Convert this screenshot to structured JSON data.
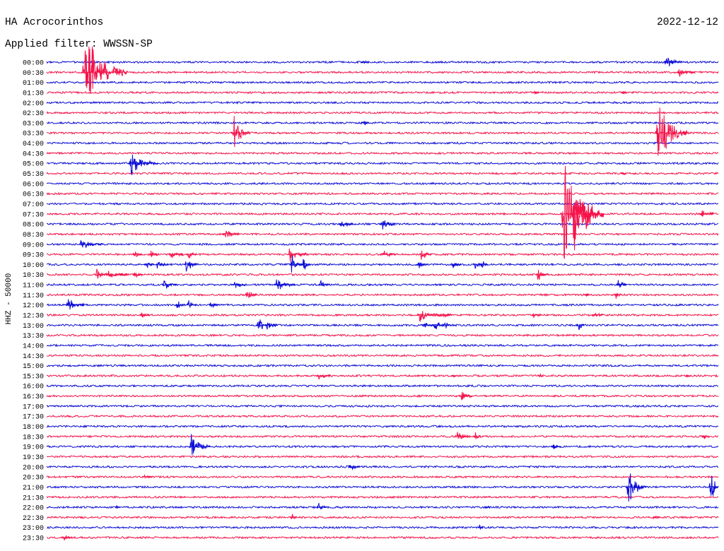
{
  "chart_data": {
    "type": "line",
    "title": "HA Acrocorinthos",
    "date": "2022-12-12",
    "filter": "Applied filter: WWSSN-SP",
    "ylabel": "HHZ - 50000",
    "colors": {
      "blue": "#0b0bd6",
      "red": "#f5124a",
      "text": "#000000",
      "background": "#ffffff"
    },
    "rows": [
      {
        "label": "00:00",
        "color": "blue",
        "events": [
          {
            "t": 14.1,
            "amp": 0.2,
            "dur": 0.3
          },
          {
            "t": 27.6,
            "amp": 0.7,
            "dur": 0.8
          }
        ]
      },
      {
        "label": "00:30",
        "color": "red",
        "events": [
          {
            "t": 1.6,
            "amp": 4.3,
            "dur": 2.0
          },
          {
            "t": 2.0,
            "amp": 3.8,
            "dur": 0.5
          },
          {
            "t": 28.2,
            "amp": 0.4,
            "dur": 0.8
          }
        ]
      },
      {
        "label": "01:00",
        "color": "blue",
        "events": []
      },
      {
        "label": "01:30",
        "color": "red",
        "events": [
          {
            "t": 21.8,
            "amp": 0.2,
            "dur": 0.2
          },
          {
            "t": 25.7,
            "amp": 0.2,
            "dur": 0.2
          }
        ]
      },
      {
        "label": "02:00",
        "color": "blue",
        "events": []
      },
      {
        "label": "02:30",
        "color": "red",
        "events": []
      },
      {
        "label": "03:00",
        "color": "blue",
        "events": [
          {
            "t": 14.1,
            "amp": 0.4,
            "dur": 0.3
          }
        ]
      },
      {
        "label": "03:30",
        "color": "red",
        "events": [
          {
            "t": 8.3,
            "amp": 2.0,
            "dur": 0.8
          },
          {
            "t": 27.2,
            "amp": 3.3,
            "dur": 1.5
          }
        ]
      },
      {
        "label": "04:00",
        "color": "blue",
        "events": []
      },
      {
        "label": "04:30",
        "color": "red",
        "events": []
      },
      {
        "label": "05:00",
        "color": "blue",
        "events": [
          {
            "t": 3.7,
            "amp": 1.3,
            "dur": 1.3
          }
        ]
      },
      {
        "label": "05:30",
        "color": "red",
        "events": [
          {
            "t": 25.7,
            "amp": 0.2,
            "dur": 0.2
          }
        ]
      },
      {
        "label": "06:00",
        "color": "blue",
        "events": []
      },
      {
        "label": "06:30",
        "color": "red",
        "events": []
      },
      {
        "label": "07:00",
        "color": "blue",
        "events": []
      },
      {
        "label": "07:30",
        "color": "red",
        "events": [
          {
            "t": 23.0,
            "amp": 5.5,
            "dur": 1.9
          },
          {
            "t": 23.5,
            "amp": 4.2,
            "dur": 1.0
          },
          {
            "t": 24.0,
            "amp": 3.2,
            "dur": 0.8
          },
          {
            "t": 29.2,
            "amp": 0.6,
            "dur": 0.6
          }
        ]
      },
      {
        "label": "08:00",
        "color": "blue",
        "events": [
          {
            "t": 13.1,
            "amp": 0.5,
            "dur": 0.6
          },
          {
            "t": 14.9,
            "amp": 0.95,
            "dur": 0.7
          }
        ]
      },
      {
        "label": "08:30",
        "color": "red",
        "events": [
          {
            "t": 7.9,
            "amp": 0.6,
            "dur": 0.7
          }
        ]
      },
      {
        "label": "09:00",
        "color": "blue",
        "events": [
          {
            "t": 1.5,
            "amp": 0.65,
            "dur": 1.0
          }
        ]
      },
      {
        "label": "09:30",
        "color": "red",
        "events": [
          {
            "t": 3.9,
            "amp": 0.5,
            "dur": 0.4
          },
          {
            "t": 4.6,
            "amp": 0.35,
            "dur": 0.4
          },
          {
            "t": 5.5,
            "amp": 0.6,
            "dur": 0.6
          },
          {
            "t": 6.3,
            "amp": 0.5,
            "dur": 0.4
          },
          {
            "t": 10.8,
            "amp": 0.8,
            "dur": 0.9
          },
          {
            "t": 15.0,
            "amp": 0.45,
            "dur": 0.6
          },
          {
            "t": 16.7,
            "amp": 0.7,
            "dur": 0.5
          }
        ]
      },
      {
        "label": "10:00",
        "color": "blue",
        "events": [
          {
            "t": 4.4,
            "amp": 0.5,
            "dur": 0.4
          },
          {
            "t": 4.9,
            "amp": 0.6,
            "dur": 0.5
          },
          {
            "t": 6.2,
            "amp": 1.0,
            "dur": 0.5
          },
          {
            "t": 10.9,
            "amp": 1.0,
            "dur": 0.5
          },
          {
            "t": 11.4,
            "amp": 0.9,
            "dur": 0.4
          },
          {
            "t": 16.6,
            "amp": 0.4,
            "dur": 0.3
          },
          {
            "t": 18.1,
            "amp": 0.6,
            "dur": 0.4
          },
          {
            "t": 19.1,
            "amp": 0.5,
            "dur": 0.3
          },
          {
            "t": 19.4,
            "amp": 0.5,
            "dur": 0.3
          }
        ]
      },
      {
        "label": "10:30",
        "color": "red",
        "events": [
          {
            "t": 2.2,
            "amp": 0.7,
            "dur": 0.5
          },
          {
            "t": 2.7,
            "amp": 0.6,
            "dur": 0.5
          },
          {
            "t": 3.2,
            "amp": 0.5,
            "dur": 0.4
          },
          {
            "t": 3.9,
            "amp": 0.5,
            "dur": 0.4
          },
          {
            "t": 21.9,
            "amp": 0.9,
            "dur": 0.5
          }
        ]
      },
      {
        "label": "11:00",
        "color": "blue",
        "events": [
          {
            "t": 5.2,
            "amp": 0.8,
            "dur": 0.6
          },
          {
            "t": 8.3,
            "amp": 0.6,
            "dur": 0.6
          },
          {
            "t": 10.2,
            "amp": 0.7,
            "dur": 0.9
          },
          {
            "t": 12.2,
            "amp": 0.6,
            "dur": 0.4
          },
          {
            "t": 25.5,
            "amp": 0.8,
            "dur": 0.4
          }
        ]
      },
      {
        "label": "11:30",
        "color": "red",
        "events": [
          {
            "t": 8.9,
            "amp": 0.65,
            "dur": 0.5
          },
          {
            "t": 24.0,
            "amp": 0.2,
            "dur": 0.2
          },
          {
            "t": 25.4,
            "amp": 0.6,
            "dur": 0.3
          }
        ]
      },
      {
        "label": "12:00",
        "color": "blue",
        "events": [
          {
            "t": 0.9,
            "amp": 0.8,
            "dur": 0.8
          },
          {
            "t": 5.8,
            "amp": 0.6,
            "dur": 0.4
          },
          {
            "t": 6.3,
            "amp": 0.7,
            "dur": 0.4
          },
          {
            "t": 7.3,
            "amp": 0.4,
            "dur": 0.4
          }
        ]
      },
      {
        "label": "12:30",
        "color": "red",
        "events": [
          {
            "t": 4.2,
            "amp": 0.4,
            "dur": 0.4
          },
          {
            "t": 16.6,
            "amp": 0.8,
            "dur": 1.1
          },
          {
            "t": 17.7,
            "amp": 0.35,
            "dur": 0.4
          },
          {
            "t": 21.7,
            "amp": 0.3,
            "dur": 0.4
          },
          {
            "t": 24.4,
            "amp": 0.3,
            "dur": 0.5
          }
        ]
      },
      {
        "label": "13:00",
        "color": "blue",
        "events": [
          {
            "t": 9.4,
            "amp": 1.2,
            "dur": 0.4
          },
          {
            "t": 9.8,
            "amp": 0.8,
            "dur": 0.5
          },
          {
            "t": 16.8,
            "amp": 0.7,
            "dur": 0.5
          },
          {
            "t": 17.3,
            "amp": 0.6,
            "dur": 0.5
          },
          {
            "t": 17.7,
            "amp": 0.5,
            "dur": 0.4
          },
          {
            "t": 23.7,
            "amp": 0.9,
            "dur": 0.3
          }
        ]
      },
      {
        "label": "13:30",
        "color": "red",
        "events": []
      },
      {
        "label": "14:00",
        "color": "blue",
        "events": []
      },
      {
        "label": "14:30",
        "color": "red",
        "events": []
      },
      {
        "label": "15:00",
        "color": "blue",
        "events": []
      },
      {
        "label": "15:30",
        "color": "red",
        "events": [
          {
            "t": 12.1,
            "amp": 0.6,
            "dur": 0.6
          },
          {
            "t": 18.1,
            "amp": 0.15,
            "dur": 0.2
          },
          {
            "t": 22.0,
            "amp": 0.15,
            "dur": 0.2
          },
          {
            "t": 28.6,
            "amp": 0.15,
            "dur": 0.2
          }
        ]
      },
      {
        "label": "16:00",
        "color": "blue",
        "events": []
      },
      {
        "label": "16:30",
        "color": "red",
        "events": [
          {
            "t": 18.5,
            "amp": 0.8,
            "dur": 0.5
          }
        ]
      },
      {
        "label": "17:00",
        "color": "blue",
        "events": []
      },
      {
        "label": "17:30",
        "color": "red",
        "events": []
      },
      {
        "label": "18:00",
        "color": "blue",
        "events": []
      },
      {
        "label": "18:30",
        "color": "red",
        "events": [
          {
            "t": 18.3,
            "amp": 0.7,
            "dur": 0.6
          },
          {
            "t": 19.1,
            "amp": 0.6,
            "dur": 0.3
          },
          {
            "t": 29.3,
            "amp": 0.3,
            "dur": 0.3
          }
        ]
      },
      {
        "label": "19:00",
        "color": "blue",
        "events": [
          {
            "t": 6.4,
            "amp": 1.4,
            "dur": 0.9
          },
          {
            "t": 22.6,
            "amp": 0.4,
            "dur": 0.4
          }
        ]
      },
      {
        "label": "19:30",
        "color": "red",
        "events": []
      },
      {
        "label": "20:00",
        "color": "blue",
        "events": [
          {
            "t": 13.5,
            "amp": 0.55,
            "dur": 0.5
          }
        ]
      },
      {
        "label": "20:30",
        "color": "red",
        "events": [
          {
            "t": 4.3,
            "amp": 0.35,
            "dur": 0.4
          }
        ]
      },
      {
        "label": "21:00",
        "color": "blue",
        "events": [
          {
            "t": 25.9,
            "amp": 2.1,
            "dur": 0.9
          },
          {
            "t": 29.6,
            "amp": 1.8,
            "dur": 0.5
          }
        ]
      },
      {
        "label": "21:30",
        "color": "red",
        "events": []
      },
      {
        "label": "22:00",
        "color": "blue",
        "events": [
          {
            "t": 3.1,
            "amp": 0.65,
            "dur": 0.2
          },
          {
            "t": 12.1,
            "amp": 0.4,
            "dur": 0.4
          },
          {
            "t": 19.6,
            "amp": 0.15,
            "dur": 0.2
          }
        ]
      },
      {
        "label": "22:30",
        "color": "red",
        "events": [
          {
            "t": 10.9,
            "amp": 0.55,
            "dur": 0.3
          },
          {
            "t": 27.1,
            "amp": 0.2,
            "dur": 0.3
          }
        ]
      },
      {
        "label": "23:00",
        "color": "blue",
        "events": [
          {
            "t": 19.3,
            "amp": 0.25,
            "dur": 0.2
          }
        ]
      },
      {
        "label": "23:30",
        "color": "red",
        "events": [
          {
            "t": 0.7,
            "amp": 0.4,
            "dur": 0.4
          }
        ]
      }
    ]
  }
}
